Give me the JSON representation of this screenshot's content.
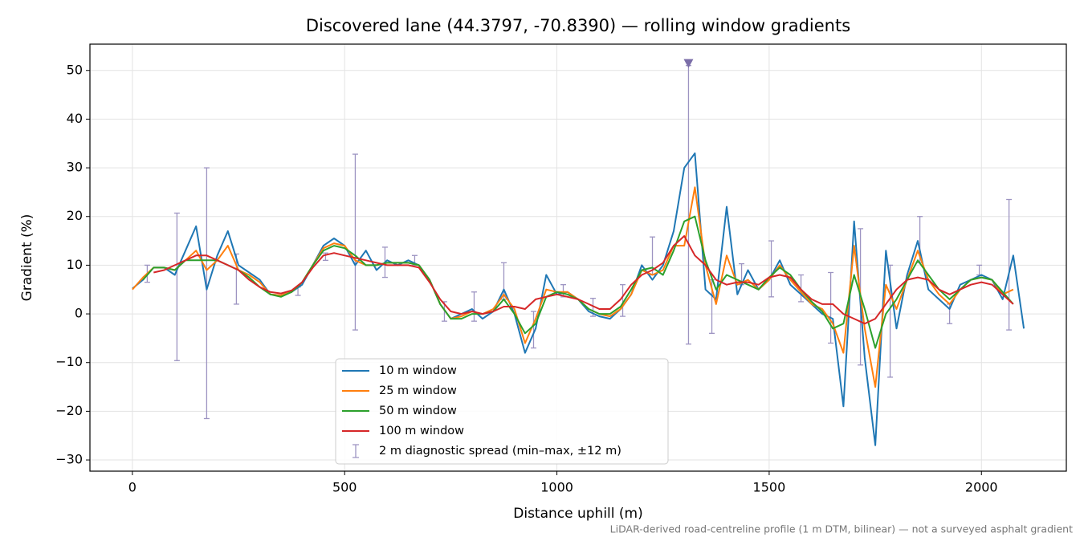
{
  "chart_data": {
    "type": "line",
    "title": "Discovered lane (44.3797, -70.8390) — rolling window gradients",
    "xlabel": "Distance uphill (m)",
    "ylabel": "Gradient (%)",
    "footnote": "LiDAR-derived road-centreline profile (1 m DTM, bilinear) — not a surveyed asphalt gradient",
    "xlim": [
      -100,
      2200
    ],
    "ylim": [
      -32.3,
      55.4
    ],
    "xticks": [
      0,
      500,
      1000,
      1500,
      2000
    ],
    "yticks": [
      {
        "value": -30,
        "label": "−30"
      },
      {
        "value": -20,
        "label": "−20"
      },
      {
        "value": -10,
        "label": "−10"
      },
      0,
      10,
      20,
      30,
      40,
      50
    ],
    "grid": true,
    "legend": "lower center",
    "x": [
      0,
      25,
      50,
      75,
      100,
      125,
      150,
      175,
      200,
      225,
      250,
      275,
      300,
      325,
      350,
      375,
      400,
      425,
      450,
      475,
      500,
      525,
      550,
      575,
      600,
      625,
      650,
      675,
      700,
      725,
      750,
      775,
      800,
      825,
      850,
      875,
      900,
      925,
      950,
      975,
      1000,
      1025,
      1050,
      1075,
      1100,
      1125,
      1150,
      1175,
      1200,
      1225,
      1250,
      1275,
      1300,
      1325,
      1350,
      1375,
      1400,
      1425,
      1450,
      1475,
      1500,
      1525,
      1550,
      1575,
      1600,
      1625,
      1650,
      1675,
      1700,
      1725,
      1750,
      1775,
      1800,
      1825,
      1850,
      1875,
      1900,
      1925,
      1950,
      1975,
      2000,
      2025,
      2050,
      2075,
      2100
    ],
    "series": [
      {
        "name": "10 m window",
        "color": "#1f77b4",
        "values": [
          5.2,
          7,
          9.5,
          9.5,
          8,
          13,
          18,
          5,
          12,
          17,
          10,
          8.5,
          7,
          4,
          3.8,
          4.5,
          6,
          10,
          14,
          15.5,
          14,
          10,
          13,
          9,
          11,
          10,
          11,
          10,
          7,
          2,
          -1,
          0,
          1,
          -1,
          0.5,
          5,
          0,
          -8,
          -3,
          8,
          4,
          4.5,
          3,
          0.5,
          -0.5,
          -1,
          1,
          4,
          10,
          7,
          10,
          17,
          30,
          33,
          5,
          3,
          22,
          4,
          9,
          5,
          7,
          11,
          6,
          4,
          2,
          0,
          -1,
          -19,
          19,
          -9,
          -27,
          13,
          -3,
          8,
          15,
          5,
          3,
          1,
          6,
          7,
          8,
          7,
          3,
          12,
          -3
        ]
      },
      {
        "name": "25 m window",
        "color": "#ff7f0e",
        "values": [
          5,
          7.5,
          9.5,
          9.5,
          9,
          11,
          13,
          9,
          11,
          14,
          9,
          8,
          6.5,
          4,
          3.8,
          4.5,
          6.5,
          10,
          13.5,
          14.5,
          14,
          11,
          10,
          10,
          10.5,
          10.5,
          10.5,
          10,
          7,
          2,
          -1,
          -0.5,
          0.5,
          0,
          1,
          4,
          1,
          -6,
          -1,
          5,
          4.5,
          4.5,
          3,
          1,
          0,
          -0.5,
          1,
          4,
          9,
          8,
          9,
          14,
          14,
          26,
          10,
          2,
          12,
          6,
          7,
          5,
          7,
          10,
          7,
          4.5,
          2,
          1,
          -2,
          -8,
          14,
          -3,
          -15,
          6,
          1,
          7,
          13,
          7,
          4,
          2,
          5,
          7,
          7.5,
          7,
          4,
          5,
          null
        ]
      },
      {
        "name": "50 m window",
        "color": "#2ca02c",
        "values": [
          null,
          7,
          9.5,
          9.5,
          9,
          11,
          11,
          11,
          11,
          10,
          9,
          7.5,
          5.5,
          4,
          3.5,
          4.5,
          6.5,
          10,
          13,
          14,
          13.5,
          12,
          10,
          10,
          10.5,
          10.5,
          10.5,
          10,
          7,
          2,
          -1,
          -1,
          0,
          0,
          0.5,
          3,
          0,
          -4,
          -2,
          3.5,
          4.5,
          4,
          3,
          1,
          0,
          0,
          1.5,
          5,
          9,
          9.5,
          8,
          13,
          19,
          20,
          11,
          5,
          8,
          7,
          6,
          5,
          7.5,
          9.5,
          8,
          5,
          2.5,
          0.5,
          -3,
          -2,
          8,
          1,
          -7,
          0,
          3,
          7,
          11,
          8,
          5,
          3,
          5,
          7,
          7.5,
          7,
          4.5,
          2,
          null
        ]
      },
      {
        "name": "100 m window",
        "color": "#d62728",
        "values": [
          null,
          null,
          8.5,
          9,
          10,
          11,
          12,
          12,
          11,
          10,
          9,
          7,
          5.5,
          4.5,
          4.2,
          4.8,
          6.5,
          9.5,
          12,
          12.5,
          12,
          11.5,
          11,
          10.5,
          10,
          10,
          10,
          9.5,
          6.5,
          3,
          0.5,
          0,
          0.5,
          0,
          0.5,
          1.5,
          1.5,
          1,
          3,
          3.5,
          4,
          3.5,
          3,
          2,
          1,
          1,
          3,
          6,
          8,
          9,
          10.5,
          14,
          16,
          12,
          10,
          7,
          6,
          6.5,
          6.5,
          6,
          7.5,
          8,
          7.5,
          5,
          3,
          2,
          2,
          0,
          -1,
          -2,
          -1,
          2,
          5,
          7,
          7.5,
          7,
          5,
          4,
          5,
          6,
          6.5,
          6,
          4,
          2,
          null
        ]
      }
    ],
    "error_bars": {
      "name": "2 m diagnostic spread (min–max, ±12 m)",
      "color": "#9d94c2",
      "x": [
        35,
        105,
        175,
        245,
        390,
        455,
        525,
        595,
        665,
        735,
        805,
        875,
        945,
        1015,
        1085,
        1155,
        1225,
        1310,
        1365,
        1435,
        1505,
        1575,
        1645,
        1715,
        1785,
        1855,
        1925,
        1995,
        2065
      ],
      "low": [
        6.5,
        -9.6,
        -21.5,
        2,
        3.8,
        11,
        -3.3,
        7.5,
        10,
        -1.5,
        -1.5,
        3,
        -7,
        3.5,
        -0.5,
        -0.5,
        8,
        -6.2,
        -4,
        6,
        3.5,
        2.5,
        -6,
        -10.5,
        -13,
        10.5,
        -2,
        8,
        -3.3
      ],
      "high": [
        10,
        20.7,
        30,
        12.3,
        5.5,
        12.5,
        32.8,
        13.7,
        12,
        2.5,
        4.5,
        10.5,
        0.5,
        6,
        3.2,
        6,
        15.8,
        51,
        7,
        10.3,
        15,
        8,
        8.5,
        17.5,
        10,
        20,
        2,
        10,
        23.5
      ]
    },
    "marker": {
      "x": 1310,
      "y": 51.5,
      "color": "#7b6ea8"
    }
  }
}
